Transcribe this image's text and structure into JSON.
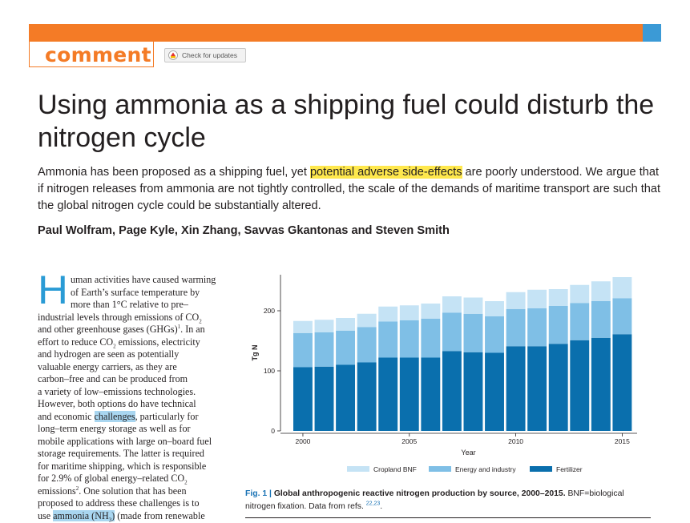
{
  "header": {
    "section_label": "comment",
    "check_updates_label": "Check for updates",
    "bar_color": "#f47b26",
    "accent_color": "#3b9ad6"
  },
  "article": {
    "title": "Using ammonia as a shipping fuel could disturb the nitrogen cycle",
    "standfirst_pre": "Ammonia has been proposed as a shipping fuel, yet ",
    "standfirst_highlight": "potential adverse side-effects",
    "standfirst_post": " are poorly understood. We argue that if nitrogen releases from ammonia are not tightly controlled, the scale of the demands of maritime transport are such that the global nitrogen cycle could be substantially altered.",
    "authors": "Paul Wolfram, Page Kyle, Xin Zhang, Savvas Gkantonas and Steven Smith"
  },
  "body": {
    "dropcap": "H",
    "l1": "uman activities have caused warming",
    "l2": "of Earth’s surface temperature by",
    "l3": "more than 1°C relative to pre–",
    "l4": "industrial levels through emissions of CO",
    "l4_sub": "2",
    "l5": "and other greenhouse gases (GHGs)",
    "l5_sup": "1",
    "l5_post": ". In an",
    "l6_pre": "effort to reduce CO",
    "l6_sub": "2",
    "l6_post": " emissions, electricity",
    "l7": "and hydrogen are seen as potentially",
    "l8": "valuable energy carriers, as they are",
    "l9": "carbon–free and can be produced from",
    "l10": "a variety of low–emissions technologies.",
    "l11": "However, both options do have technical",
    "l12_pre": "and economic ",
    "l12_hl": "challenges",
    "l12_post": ", particularly for",
    "l13": "long–term energy storage as well as for",
    "l14": "mobile applications with large on–board fuel",
    "l15": "storage requirements. The latter is required",
    "l16": "for maritime shipping, which is responsible",
    "l17_pre": "for 2.9% of global energy–related CO",
    "l17_sub": "2",
    "l18_pre": "emissions",
    "l18_sup": "2",
    "l18_post": ". One solution that has been",
    "l19": "proposed to address these challenges is to",
    "l20_pre": "use ",
    "l20_hl": "ammonia (NH",
    "l20_sub": "3",
    "l20_hl_end": ")",
    "l20_post": " (made from renewable"
  },
  "figure": {
    "caption_label": "Fig. 1 |",
    "caption_title": "Global anthropogenic reactive nitrogen production by source, 2000–2015.",
    "caption_text_1": " BNF=biological",
    "caption_text_2": "nitrogen fixation. Data from refs. ",
    "caption_refs": "22,23",
    "caption_end": "."
  },
  "chart_data": {
    "type": "bar",
    "stacked": true,
    "categories": [
      "2000",
      "2001",
      "2002",
      "2003",
      "2004",
      "2005",
      "2006",
      "2007",
      "2008",
      "2009",
      "2010",
      "2011",
      "2012",
      "2013",
      "2014",
      "2015"
    ],
    "series": [
      {
        "name": "Fertilizer",
        "color": "#0a6fad",
        "values": [
          106,
          107,
          110,
          114,
          122,
          122,
          122,
          133,
          131,
          130,
          141,
          141,
          145,
          151,
          155,
          161
        ]
      },
      {
        "name": "Energy and industry",
        "color": "#7fbfe6",
        "values": [
          57,
          57,
          57,
          59,
          60,
          62,
          65,
          64,
          64,
          61,
          62,
          63,
          63,
          62,
          61,
          60
        ]
      },
      {
        "name": "Cropland BNF",
        "color": "#c5e3f5",
        "values": [
          20,
          21,
          21,
          22,
          25,
          25,
          25,
          27,
          27,
          25,
          28,
          31,
          28,
          30,
          33,
          35
        ]
      }
    ],
    "xlabel": "Year",
    "ylabel": "Tg N",
    "ylim": [
      0,
      260
    ],
    "yticks": [
      0,
      100,
      200
    ],
    "xticks": [
      "2000",
      "2005",
      "2010",
      "2015"
    ],
    "legend": [
      "Cropland BNF",
      "Energy and industry",
      "Fertilizer"
    ],
    "legend_position": "bottom",
    "grid": false
  }
}
